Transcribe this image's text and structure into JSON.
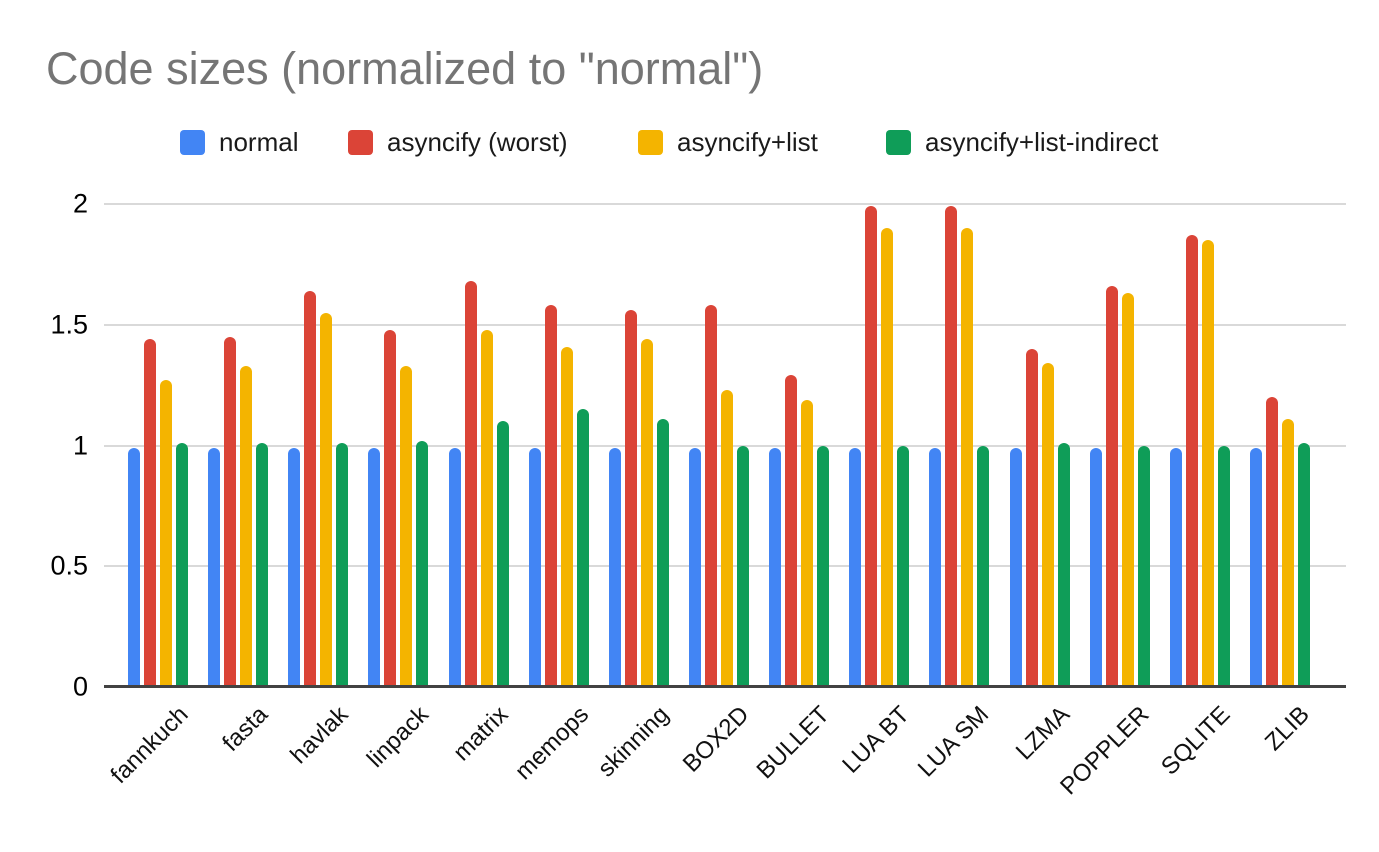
{
  "title": "Code sizes (normalized to \"normal\")",
  "chart_data": {
    "type": "bar",
    "title": "Code sizes (normalized to \"normal\")",
    "xlabel": "",
    "ylabel": "",
    "ylim": [
      0,
      2
    ],
    "yticks": [
      0,
      0.5,
      1,
      1.5,
      2
    ],
    "grid": true,
    "legend_position": "top",
    "categories": [
      "fannkuch",
      "fasta",
      "havlak",
      "linpack",
      "matrix",
      "memops",
      "skinning",
      "BOX2D",
      "BULLET",
      "LUA BT",
      "LUA SM",
      "LZMA",
      "POPPLER",
      "SQLITE",
      "ZLIB"
    ],
    "series": [
      {
        "name": "normal",
        "color": "#4285F4",
        "values": [
          0.99,
          0.99,
          0.99,
          0.99,
          0.99,
          0.99,
          0.99,
          0.99,
          0.99,
          0.99,
          0.99,
          0.99,
          0.99,
          0.99,
          0.99
        ]
      },
      {
        "name": "asyncify (worst)",
        "color": "#DB4437",
        "values": [
          1.44,
          1.45,
          1.64,
          1.48,
          1.68,
          1.58,
          1.56,
          1.58,
          1.29,
          1.99,
          1.99,
          1.4,
          1.66,
          1.87,
          1.2
        ]
      },
      {
        "name": "asyncify+list",
        "color": "#F4B400",
        "values": [
          1.27,
          1.33,
          1.55,
          1.33,
          1.48,
          1.41,
          1.44,
          1.23,
          1.19,
          1.9,
          1.9,
          1.34,
          1.63,
          1.85,
          1.11
        ]
      },
      {
        "name": "asyncify+list-indirect",
        "color": "#0F9D58",
        "values": [
          1.01,
          1.01,
          1.01,
          1.02,
          1.1,
          1.15,
          1.11,
          1.0,
          1.0,
          1.0,
          1.0,
          1.01,
          1.0,
          1.0,
          1.01
        ]
      }
    ]
  }
}
